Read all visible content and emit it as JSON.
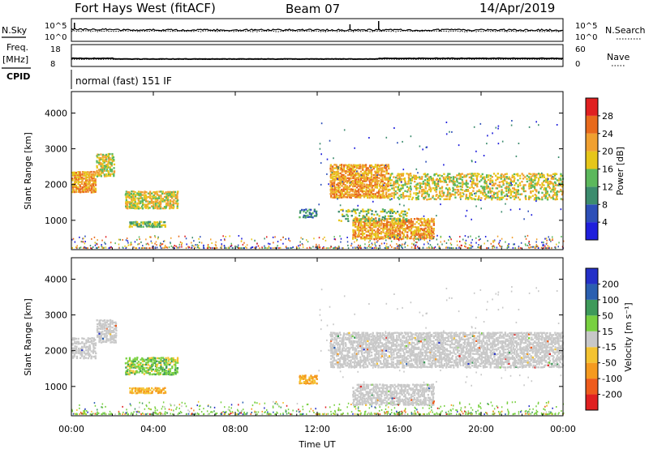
{
  "header": {
    "station": "Fort Hays West (fitACF)",
    "beam": "Beam 07",
    "date": "14/Apr/2019"
  },
  "top_panels": {
    "nsky_label": "N.Sky",
    "nsearch_label": "N.Search",
    "noise_tick_top": "10^5",
    "noise_tick_bottom": "10^0",
    "freq_label": "Freq.",
    "freq_unit": "[MHz]",
    "freq_ticks": [
      "18",
      "8"
    ],
    "nave_label": "Nave",
    "nave_ticks": [
      "60",
      "0"
    ],
    "cpid_label": "CPID",
    "cpid_text": "normal (fast) 151 IF"
  },
  "colors": {
    "power_scale": [
      "#1f1fdc",
      "#2d4fb8",
      "#3c8c6e",
      "#5cb85c",
      "#e6c619",
      "#f0a030",
      "#e86a1c",
      "#e02020"
    ],
    "velocity_scale": [
      "#e02020",
      "#ee5b1c",
      "#f59a1f",
      "#f4c331",
      "#c8c8c8",
      "#78d040",
      "#3e9a5a",
      "#2a5fb0",
      "#2430c8"
    ],
    "ground_scatter": "#c8c8c8"
  },
  "chart_data": [
    {
      "type": "heatmap",
      "panel": "power",
      "ylabel": "Slant Range [km]",
      "xlabel": "Time UT",
      "x_ticks": [
        "00:00",
        "04:00",
        "08:00",
        "12:00",
        "16:00",
        "20:00",
        "00:00"
      ],
      "xlim_hours": [
        0,
        24
      ],
      "ylim_km": [
        180,
        4600
      ],
      "y_ticks": [
        1000,
        2000,
        3000,
        4000
      ],
      "colorbar_label": "Power [dB]",
      "colorbar_ticks": [
        "28",
        "24",
        "20",
        "16",
        "12",
        "8",
        "4"
      ],
      "colorbar_range": [
        0,
        32
      ]
    },
    {
      "type": "heatmap",
      "panel": "velocity",
      "ylabel": "Slant Range [km]",
      "xlabel": "Time UT",
      "x_ticks": [
        "00:00",
        "04:00",
        "08:00",
        "12:00",
        "16:00",
        "20:00",
        "00:00"
      ],
      "xlim_hours": [
        0,
        24
      ],
      "ylim_km": [
        180,
        4600
      ],
      "y_ticks": [
        1000,
        2000,
        3000,
        4000
      ],
      "colorbar_label": "Velocity [m s⁻¹]",
      "colorbar_ticks": [
        "200",
        "100",
        "50",
        "15",
        "-15",
        "-50",
        "-100",
        "-200"
      ],
      "scatter_regions": [
        {
          "t0": 0.0,
          "t1": 1.2,
          "r0": 1750,
          "r1": 2350
        },
        {
          "t0": 1.2,
          "t1": 2.2,
          "r0": 2200,
          "r1": 2850
        },
        {
          "t0": 2.6,
          "t1": 5.2,
          "r0": 1300,
          "r1": 1800
        },
        {
          "t0": 2.8,
          "t1": 4.6,
          "r0": 780,
          "r1": 950
        },
        {
          "t0": 11.1,
          "t1": 12.0,
          "r0": 1050,
          "r1": 1300
        },
        {
          "t0": 12.6,
          "t1": 24.0,
          "r0": 1500,
          "r1": 2500
        },
        {
          "t0": 13.7,
          "t1": 17.7,
          "r0": 450,
          "r1": 1050
        }
      ]
    }
  ]
}
